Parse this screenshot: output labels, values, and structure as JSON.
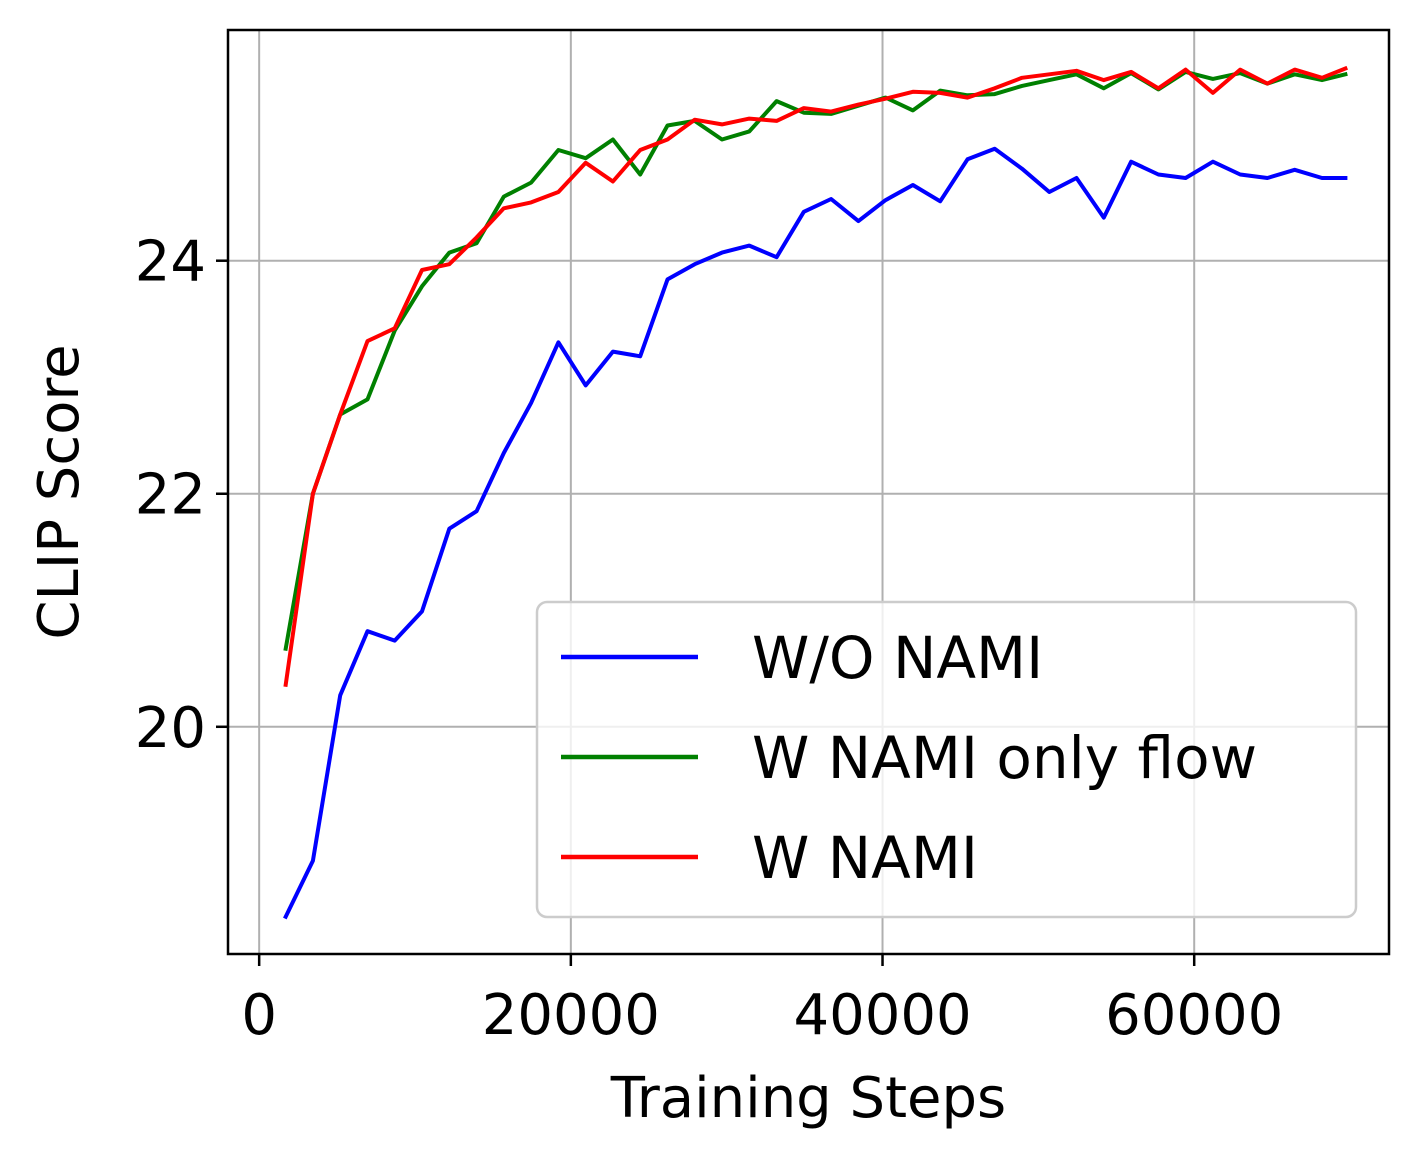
{
  "chart_data": {
    "type": "line",
    "title": "",
    "xlabel": "Training Steps",
    "ylabel": "CLIP Score",
    "xlim": [
      -2000,
      72500
    ],
    "ylim": [
      18.05,
      25.98
    ],
    "xticks": [
      0,
      20000,
      40000,
      60000
    ],
    "xtick_labels": [
      "0",
      "20000",
      "40000",
      "60000"
    ],
    "yticks": [
      20,
      22,
      24
    ],
    "ytick_labels": [
      "20",
      "22",
      "24"
    ],
    "grid": true,
    "legend_position": "lower-right",
    "x": [
      1700,
      3450,
      5200,
      6950,
      8700,
      10450,
      12200,
      13950,
      15700,
      17450,
      19200,
      20950,
      22700,
      24450,
      26200,
      27950,
      29700,
      31450,
      33200,
      34950,
      36700,
      38450,
      40200,
      41950,
      43700,
      45450,
      47200,
      48950,
      50700,
      52450,
      54200,
      55950,
      57700,
      59450,
      61200,
      62950,
      64700,
      66450,
      68200,
      69700
    ],
    "series": [
      {
        "name": "W/O NAMI",
        "color": "#0000ff",
        "values": [
          18.37,
          18.85,
          20.27,
          20.82,
          20.74,
          20.99,
          21.7,
          21.85,
          22.35,
          22.78,
          23.3,
          22.93,
          23.22,
          23.18,
          23.84,
          23.97,
          24.07,
          24.13,
          24.03,
          24.42,
          24.53,
          24.34,
          24.52,
          24.65,
          24.51,
          24.87,
          24.96,
          24.79,
          24.59,
          24.71,
          24.37,
          24.85,
          24.74,
          24.71,
          24.85,
          24.74,
          24.71,
          24.78,
          24.71,
          24.71
        ]
      },
      {
        "name": "W NAMI only flow",
        "color": "#008000",
        "values": [
          20.67,
          22.0,
          22.68,
          22.81,
          23.4,
          23.78,
          24.07,
          24.15,
          24.55,
          24.67,
          24.95,
          24.88,
          25.04,
          24.74,
          25.16,
          25.2,
          25.04,
          25.11,
          25.37,
          25.27,
          25.26,
          25.33,
          25.4,
          25.29,
          25.46,
          25.42,
          25.43,
          25.5,
          25.55,
          25.6,
          25.48,
          25.61,
          25.47,
          25.62,
          25.56,
          25.61,
          25.52,
          25.6,
          25.55,
          25.6
        ]
      },
      {
        "name": "W NAMI",
        "color": "#ff0000",
        "values": [
          20.36,
          22.0,
          22.68,
          23.31,
          23.42,
          23.92,
          23.97,
          24.2,
          24.45,
          24.5,
          24.59,
          24.84,
          24.68,
          24.95,
          25.04,
          25.21,
          25.17,
          25.22,
          25.2,
          25.31,
          25.28,
          25.34,
          25.39,
          25.45,
          25.44,
          25.4,
          25.48,
          25.57,
          25.6,
          25.63,
          25.55,
          25.62,
          25.48,
          25.64,
          25.44,
          25.64,
          25.52,
          25.64,
          25.57,
          25.65
        ]
      }
    ]
  }
}
